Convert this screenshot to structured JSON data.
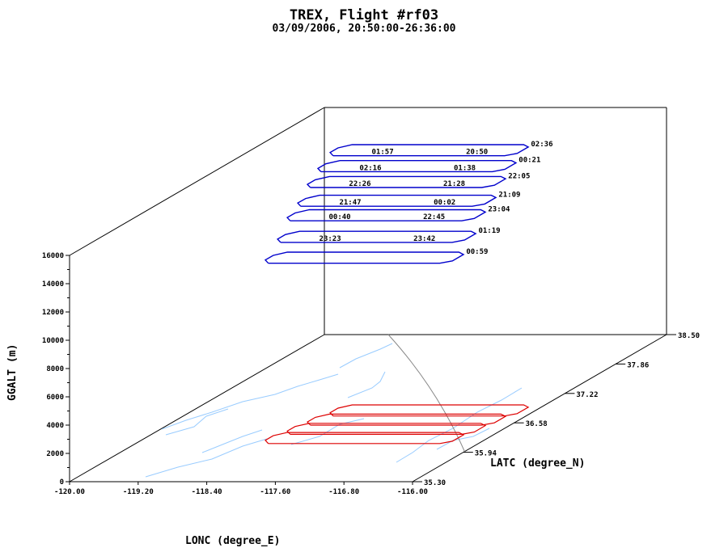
{
  "chart_data": {
    "type": "line",
    "title": "TREX, Flight #rf03",
    "subtitle": "03/09/2006, 20:50:00-26:36:00",
    "xlabel": "LONC (degree_E)",
    "ylabel": "LATC (degree_N)",
    "zlabel": "GGALT (m)",
    "xlim": [
      -120.0,
      -116.0
    ],
    "ylim": [
      35.3,
      38.5
    ],
    "zlim": [
      0,
      16000
    ],
    "x_ticks": [
      "-120.00",
      "-119.20",
      "-118.40",
      "-117.60",
      "-116.80",
      "-116.00"
    ],
    "y_ticks": [
      "35.30",
      "35.94",
      "36.58",
      "37.22",
      "37.86",
      "38.50"
    ],
    "z_ticks": [
      "0",
      "2000",
      "4000",
      "6000",
      "8000",
      "10000",
      "12000",
      "14000",
      "16000"
    ],
    "grid": false,
    "series": [
      {
        "color": "#0000cc",
        "loops": [
          {
            "z": 12750,
            "x_west": -118.45,
            "x_east": -116.35,
            "lat": 36.25
          },
          {
            "z": 13900,
            "x_west": -118.4,
            "x_east": -116.3,
            "lat": 36.35
          },
          {
            "z": 15100,
            "x_west": -118.38,
            "x_east": -116.28,
            "lat": 36.45
          },
          {
            "z": 15800,
            "x_west": -118.35,
            "x_east": -116.25,
            "lat": 36.55
          },
          {
            "z": 16800,
            "x_west": -118.33,
            "x_east": -116.23,
            "lat": 36.65
          },
          {
            "z": 17600,
            "x_west": -118.3,
            "x_east": -116.2,
            "lat": 36.75
          },
          {
            "z": 18400,
            "x_west": -118.25,
            "x_east": -116.15,
            "lat": 36.85
          }
        ]
      },
      {
        "color": "#dd0000",
        "ground_track": true
      }
    ],
    "annotations": [
      "02:36",
      "20:50",
      "01:57",
      "00:21",
      "01:38",
      "02:16",
      "22:05",
      "21:28",
      "22:26",
      "21:09",
      "00:02",
      "21:47",
      "23:04",
      "22:45",
      "00:40",
      "01:19",
      "23:42",
      "23:23",
      "00:59"
    ],
    "colors": {
      "track": "#0000cc",
      "ground_track": "#dd0000",
      "terrain": "#99ccff",
      "frame": "#000000"
    }
  }
}
